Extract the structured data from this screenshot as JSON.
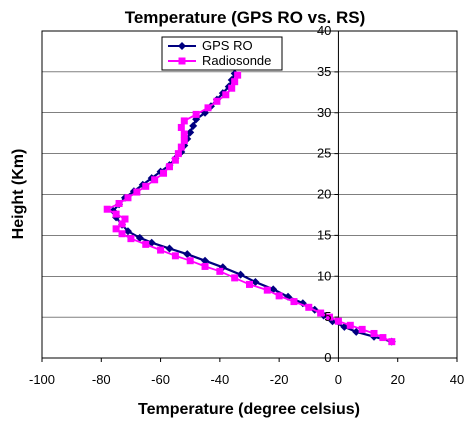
{
  "chart_data": {
    "type": "line",
    "title": "Temperature (GPS RO vs. RS)",
    "xlabel": "Temperature (degree celsius)",
    "ylabel": "Height (Km)",
    "xlim": [
      -100,
      40
    ],
    "ylim": [
      0,
      40
    ],
    "x_ticks": [
      -100,
      -80,
      -60,
      -40,
      -20,
      0,
      20,
      40
    ],
    "y_ticks": [
      0,
      5,
      10,
      15,
      20,
      25,
      30,
      35,
      40
    ],
    "x_tick_labels": [
      "-100",
      "-80",
      "-60",
      "-40",
      "-20",
      "0",
      "20",
      "40"
    ],
    "y_tick_labels": [
      "0",
      "5",
      "10",
      "15",
      "20",
      "25",
      "30",
      "35",
      "40"
    ],
    "grid": "horizontal",
    "legend_position": "top",
    "series": [
      {
        "name": "GPS RO",
        "color": "#000080",
        "marker": "diamond",
        "points": [
          [
            18,
            2
          ],
          [
            12,
            2.6
          ],
          [
            6,
            3.2
          ],
          [
            2,
            3.8
          ],
          [
            -2,
            4.5
          ],
          [
            -5,
            5.2
          ],
          [
            -8,
            5.9
          ],
          [
            -12,
            6.7
          ],
          [
            -17,
            7.5
          ],
          [
            -22,
            8.4
          ],
          [
            -28,
            9.3
          ],
          [
            -33,
            10.2
          ],
          [
            -39,
            11.1
          ],
          [
            -45,
            11.9
          ],
          [
            -51,
            12.7
          ],
          [
            -57,
            13.4
          ],
          [
            -63,
            14.1
          ],
          [
            -67,
            14.7
          ],
          [
            -71,
            15.5
          ],
          [
            -73,
            16.3
          ],
          [
            -75,
            17.2
          ],
          [
            -76,
            18
          ],
          [
            -74,
            18.8
          ],
          [
            -72,
            19.6
          ],
          [
            -69,
            20.4
          ],
          [
            -66,
            21.2
          ],
          [
            -63,
            22
          ],
          [
            -60,
            22.8
          ],
          [
            -57,
            23.6
          ],
          [
            -55,
            24.4
          ],
          [
            -53,
            25.2
          ],
          [
            -52,
            26
          ],
          [
            -51,
            26.8
          ],
          [
            -50,
            27.6
          ],
          [
            -49,
            28.4
          ],
          [
            -48,
            29.2
          ],
          [
            -45,
            30
          ],
          [
            -43,
            30.8
          ],
          [
            -41,
            31.6
          ],
          [
            -39,
            32.4
          ],
          [
            -37,
            33.2
          ],
          [
            -36,
            34
          ],
          [
            -35,
            34.8
          ]
        ]
      },
      {
        "name": "Radiosonde",
        "color": "#ff00ff",
        "marker": "square",
        "points": [
          [
            18,
            2
          ],
          [
            15,
            2.5
          ],
          [
            12,
            3
          ],
          [
            8,
            3.5
          ],
          [
            4,
            4
          ],
          [
            0,
            4.5
          ],
          [
            -3,
            5
          ],
          [
            -6,
            5.5
          ],
          [
            -10,
            6.2
          ],
          [
            -15,
            6.9
          ],
          [
            -20,
            7.6
          ],
          [
            -24,
            8.3
          ],
          [
            -30,
            9
          ],
          [
            -35,
            9.8
          ],
          [
            -40,
            10.6
          ],
          [
            -45,
            11.2
          ],
          [
            -50,
            11.9
          ],
          [
            -55,
            12.5
          ],
          [
            -60,
            13.2
          ],
          [
            -65,
            13.9
          ],
          [
            -70,
            14.6
          ],
          [
            -73,
            15.2
          ],
          [
            -75,
            15.8
          ],
          [
            -73,
            16.4
          ],
          [
            -72,
            17
          ],
          [
            -75,
            17.6
          ],
          [
            -78,
            18.2
          ],
          [
            -74,
            18.9
          ],
          [
            -71,
            19.6
          ],
          [
            -68,
            20.3
          ],
          [
            -65,
            21
          ],
          [
            -62,
            21.8
          ],
          [
            -59,
            22.6
          ],
          [
            -57,
            23.4
          ],
          [
            -55,
            24.2
          ],
          [
            -54,
            25
          ],
          [
            -53,
            25.8
          ],
          [
            -52,
            26.6
          ],
          [
            -52,
            27.4
          ],
          [
            -53,
            28.2
          ],
          [
            -52,
            29
          ],
          [
            -48,
            29.8
          ],
          [
            -44,
            30.6
          ],
          [
            -41,
            31.4
          ],
          [
            -38,
            32.2
          ],
          [
            -36,
            33
          ],
          [
            -35,
            33.8
          ],
          [
            -34,
            34.6
          ]
        ]
      }
    ]
  }
}
